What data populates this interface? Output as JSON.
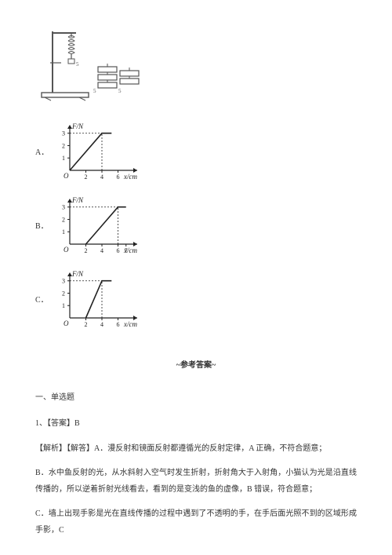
{
  "apparatus": {
    "stand_color": "#555555",
    "spring_coils": 5,
    "weight_count": 3
  },
  "charts": {
    "ylabel": "F/N",
    "xlabel": "x/cm",
    "ylim": [
      0,
      3
    ],
    "yticks": [
      1,
      2,
      3
    ],
    "axis_color": "#222222",
    "bg": "#ffffff",
    "line_color": "#222222",
    "line_width": 1.6,
    "A": {
      "xticks": [
        2,
        4,
        6
      ],
      "xtick_labels": [
        "2",
        "4",
        "6"
      ],
      "points": [
        [
          0,
          0
        ],
        [
          4,
          3
        ],
        [
          5.2,
          3
        ]
      ]
    },
    "B": {
      "xticks": [
        2,
        4,
        6,
        7
      ],
      "xtick_labels": [
        "2",
        "4",
        "6",
        "7"
      ],
      "points": [
        [
          2,
          0
        ],
        [
          6,
          3
        ],
        [
          7,
          3
        ]
      ]
    },
    "C": {
      "xticks": [
        2,
        4,
        6
      ],
      "xtick_labels": [
        "2",
        "4",
        "6"
      ],
      "points": [
        [
          2,
          0
        ],
        [
          4,
          3
        ],
        [
          5.2,
          3
        ]
      ]
    }
  },
  "options": {
    "A": "A．",
    "B": "B．",
    "C": "C．"
  },
  "answers": {
    "heading": "~参考答案~",
    "section": "一、单选题",
    "q1_ans": "1、【答案】B",
    "expl_lead": "【解析】【解答】A．漫反射和镜面反射都遵循光的反射定律，A 正确，不符合题意；",
    "expl_b": "B．水中鱼反射的光，从水斜射入空气时发生折射，折射角大于入射角，小猫认为光是沿直线传播的，所以逆着折射光线看去，看到的是变浅的鱼的虚像，B 错误，符合题意；",
    "expl_c": "C．墙上出现手影是光在直线传播的过程中遇到了不透明的手，在手后面光照不到的区域形成手影，C"
  }
}
